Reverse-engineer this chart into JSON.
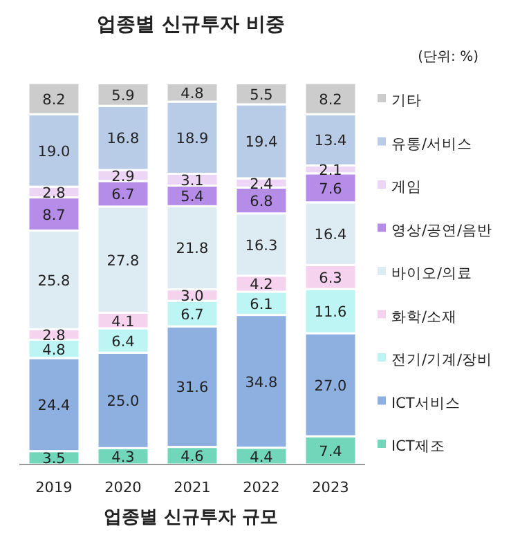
{
  "chart_data": {
    "type": "bar",
    "stacked": true,
    "title": "업종별 신규투자 비중",
    "subtitle": "(단위: %)",
    "categories": [
      "2019",
      "2020",
      "2021",
      "2022",
      "2023"
    ],
    "series": [
      {
        "name": "ICT제조",
        "color": "#72d6bb",
        "values": [
          3.5,
          4.3,
          4.6,
          4.4,
          7.4
        ]
      },
      {
        "name": "ICT서비스",
        "color": "#8eb0e0",
        "values": [
          24.4,
          25.0,
          31.6,
          34.8,
          27.0
        ],
        "value_labels": [
          "24.4",
          "25.0",
          "31.6",
          "34.8",
          "27.0"
        ]
      },
      {
        "name": "전기/기계/장비",
        "color": "#bdf5f5",
        "values": [
          4.8,
          6.4,
          6.7,
          6.1,
          11.6
        ]
      },
      {
        "name": "화학/소재",
        "color": "#f5d3ef",
        "values": [
          2.8,
          4.1,
          3.0,
          4.2,
          6.3
        ],
        "value_labels": [
          "2.8",
          "4.1",
          "3.0",
          "4.2",
          "6.3"
        ]
      },
      {
        "name": "바이오/의료",
        "color": "#ddecf3",
        "values": [
          25.8,
          27.8,
          21.8,
          16.3,
          16.4
        ]
      },
      {
        "name": "영상/공연/음반",
        "color": "#b58ce8",
        "values": [
          8.7,
          6.7,
          5.4,
          6.8,
          7.6
        ]
      },
      {
        "name": "게임",
        "color": "#ecd5f5",
        "values": [
          2.8,
          2.9,
          3.1,
          2.4,
          2.1
        ]
      },
      {
        "name": "유통/서비스",
        "color": "#b8cce7",
        "values": [
          19.0,
          16.8,
          18.9,
          19.4,
          13.4
        ],
        "value_labels": [
          "19.0",
          "16.8",
          "18.9",
          "19.4",
          "13.4"
        ]
      },
      {
        "name": "기타",
        "color": "#cccccc",
        "values": [
          8.2,
          5.9,
          4.8,
          5.5,
          8.2
        ]
      }
    ],
    "ylim": [
      0,
      100
    ],
    "tick_labels": "x",
    "legend": "right",
    "data_labels": true,
    "annotations": [
      "업종별 신규투자 규모"
    ]
  }
}
